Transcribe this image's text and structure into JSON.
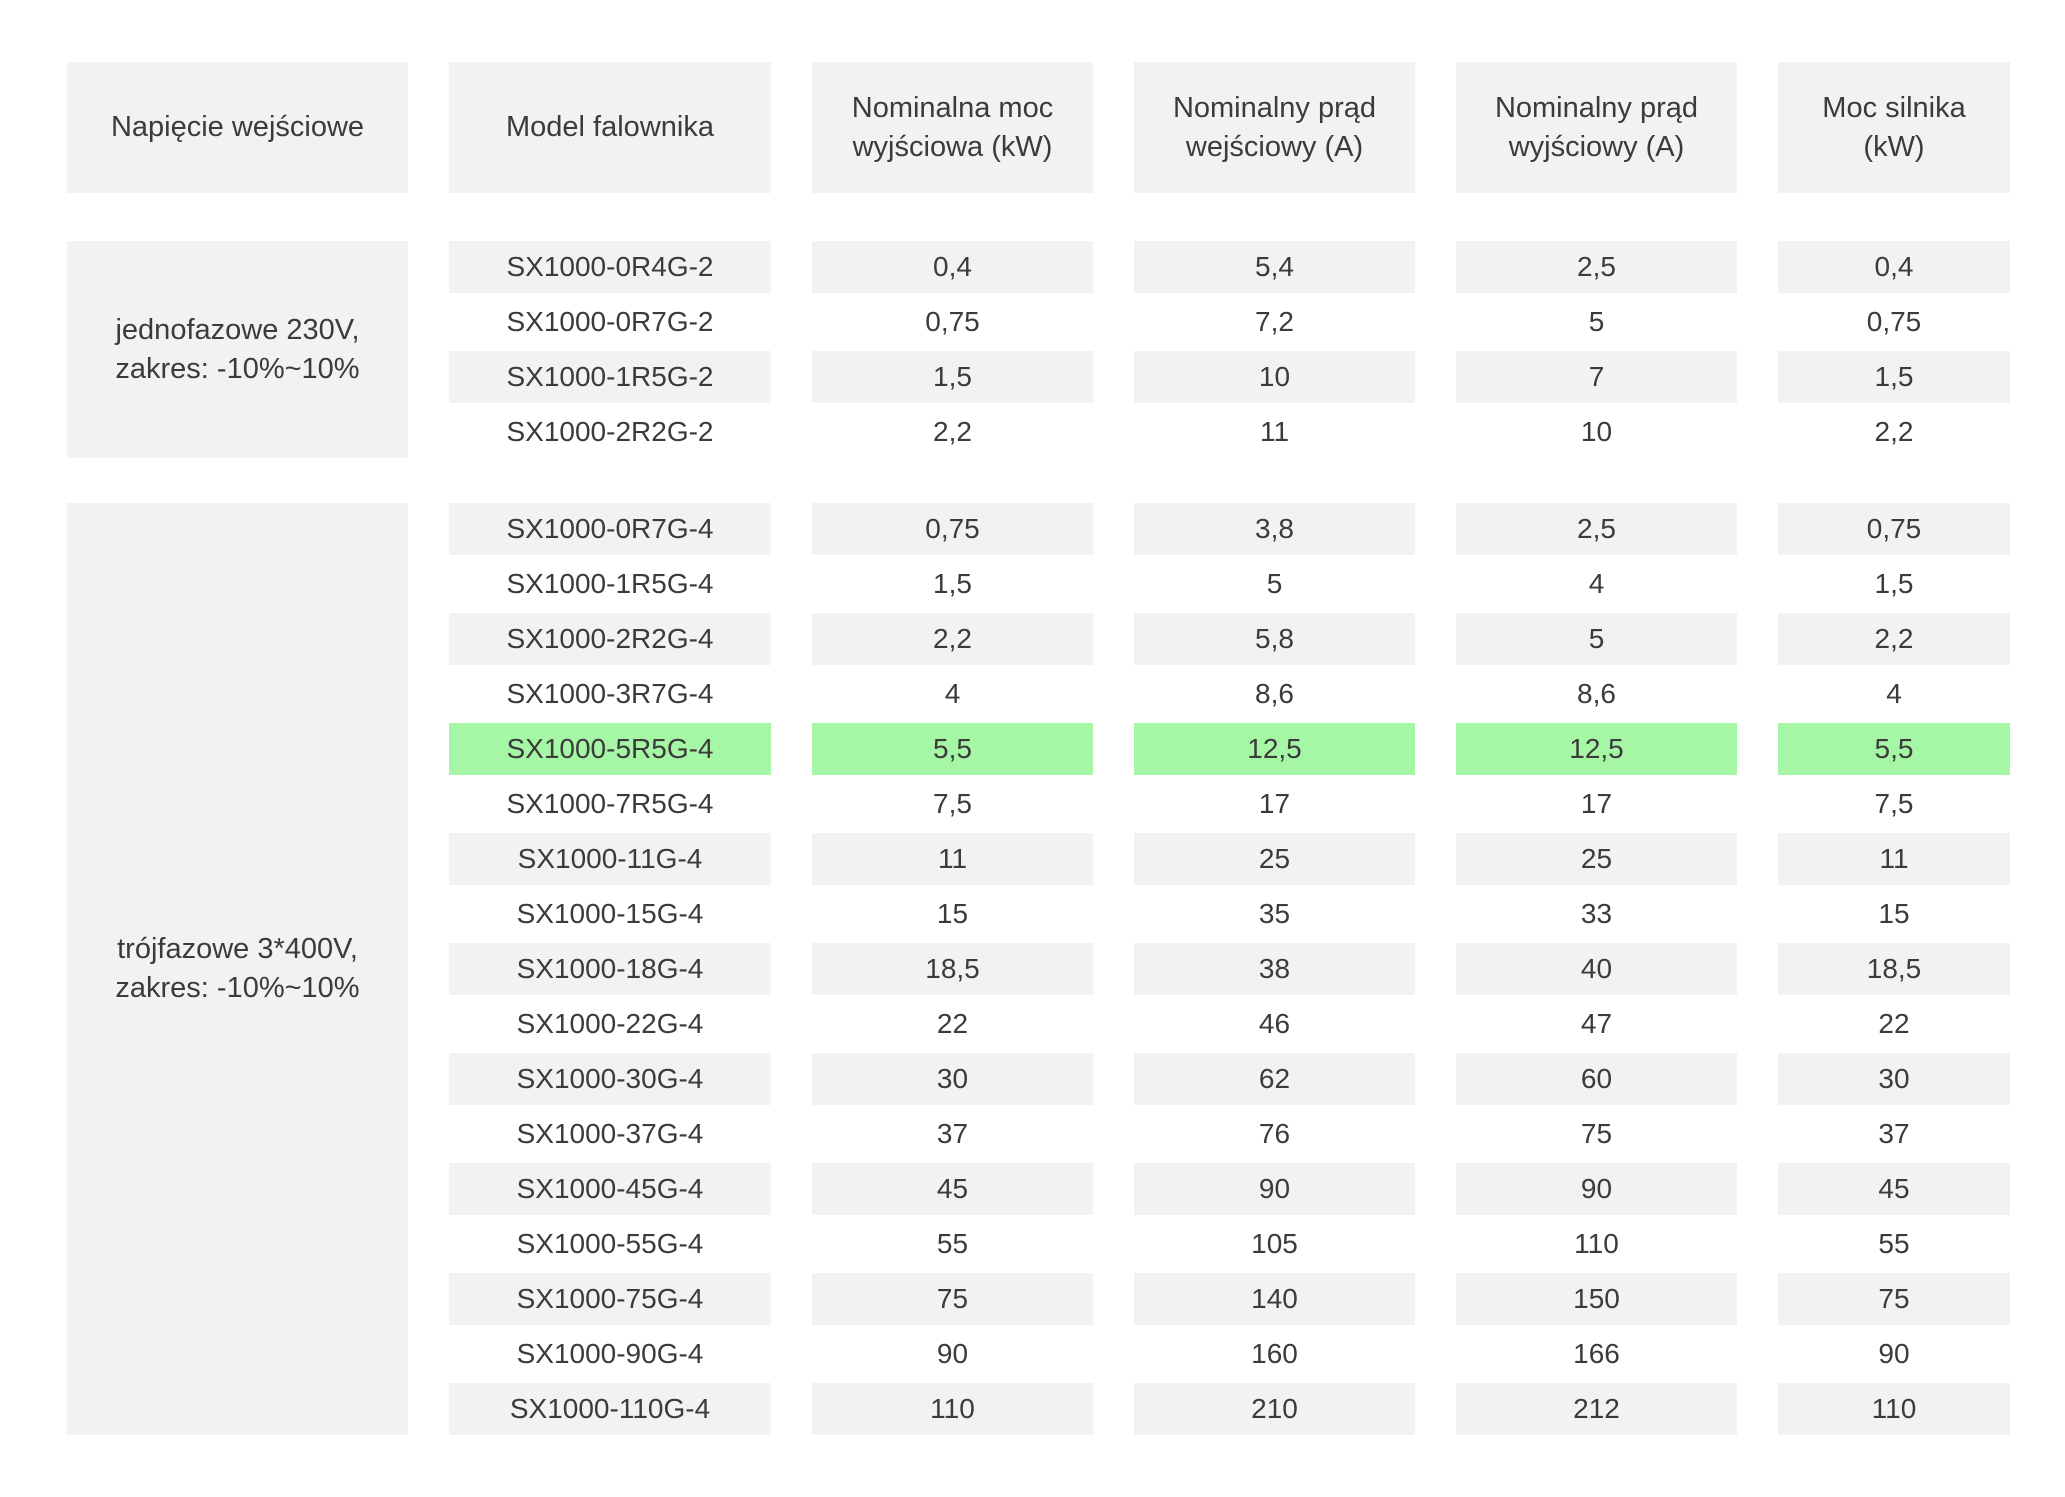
{
  "colors": {
    "cell_gray": "#f2f2f1",
    "highlight_green": "#a5f7a5",
    "text": "#3b3b3b",
    "background": "#ffffff"
  },
  "table": {
    "columns": [
      "Napięcie wejściowe",
      "Model falownika",
      "Nominalna moc wyjściowa (kW)",
      "Nominalny prąd wejściowy (A)",
      "Nominalny prąd wyjściowy (A)",
      "Moc silnika (kW)"
    ],
    "groups": [
      {
        "voltage_label_line1": "jednofazowe 230V,",
        "voltage_label_line2": "zakres: -10%~10%",
        "rows": [
          {
            "model": "SX1000-0R4G-2",
            "output_power_kw": "0,4",
            "input_current_a": "5,4",
            "output_current_a": "2,5",
            "motor_power_kw": "0,4",
            "highlight": false
          },
          {
            "model": "SX1000-0R7G-2",
            "output_power_kw": "0,75",
            "input_current_a": "7,2",
            "output_current_a": "5",
            "motor_power_kw": "0,75",
            "highlight": false
          },
          {
            "model": "SX1000-1R5G-2",
            "output_power_kw": "1,5",
            "input_current_a": "10",
            "output_current_a": "7",
            "motor_power_kw": "1,5",
            "highlight": false
          },
          {
            "model": "SX1000-2R2G-2",
            "output_power_kw": "2,2",
            "input_current_a": "11",
            "output_current_a": "10",
            "motor_power_kw": "2,2",
            "highlight": false
          }
        ]
      },
      {
        "voltage_label_line1": "trójfazowe 3*400V,",
        "voltage_label_line2": "zakres: -10%~10%",
        "rows": [
          {
            "model": "SX1000-0R7G-4",
            "output_power_kw": "0,75",
            "input_current_a": "3,8",
            "output_current_a": "2,5",
            "motor_power_kw": "0,75",
            "highlight": false
          },
          {
            "model": "SX1000-1R5G-4",
            "output_power_kw": "1,5",
            "input_current_a": "5",
            "output_current_a": "4",
            "motor_power_kw": "1,5",
            "highlight": false
          },
          {
            "model": "SX1000-2R2G-4",
            "output_power_kw": "2,2",
            "input_current_a": "5,8",
            "output_current_a": "5",
            "motor_power_kw": "2,2",
            "highlight": false
          },
          {
            "model": "SX1000-3R7G-4",
            "output_power_kw": "4",
            "input_current_a": "8,6",
            "output_current_a": "8,6",
            "motor_power_kw": "4",
            "highlight": false
          },
          {
            "model": "SX1000-5R5G-4",
            "output_power_kw": "5,5",
            "input_current_a": "12,5",
            "output_current_a": "12,5",
            "motor_power_kw": "5,5",
            "highlight": true
          },
          {
            "model": "SX1000-7R5G-4",
            "output_power_kw": "7,5",
            "input_current_a": "17",
            "output_current_a": "17",
            "motor_power_kw": "7,5",
            "highlight": false
          },
          {
            "model": "SX1000-11G-4",
            "output_power_kw": "11",
            "input_current_a": "25",
            "output_current_a": "25",
            "motor_power_kw": "11",
            "highlight": false
          },
          {
            "model": "SX1000-15G-4",
            "output_power_kw": "15",
            "input_current_a": "35",
            "output_current_a": "33",
            "motor_power_kw": "15",
            "highlight": false
          },
          {
            "model": "SX1000-18G-4",
            "output_power_kw": "18,5",
            "input_current_a": "38",
            "output_current_a": "40",
            "motor_power_kw": "18,5",
            "highlight": false
          },
          {
            "model": "SX1000-22G-4",
            "output_power_kw": "22",
            "input_current_a": "46",
            "output_current_a": "47",
            "motor_power_kw": "22",
            "highlight": false
          },
          {
            "model": "SX1000-30G-4",
            "output_power_kw": "30",
            "input_current_a": "62",
            "output_current_a": "60",
            "motor_power_kw": "30",
            "highlight": false
          },
          {
            "model": "SX1000-37G-4",
            "output_power_kw": "37",
            "input_current_a": "76",
            "output_current_a": "75",
            "motor_power_kw": "37",
            "highlight": false
          },
          {
            "model": "SX1000-45G-4",
            "output_power_kw": "45",
            "input_current_a": "90",
            "output_current_a": "90",
            "motor_power_kw": "45",
            "highlight": false
          },
          {
            "model": "SX1000-55G-4",
            "output_power_kw": "55",
            "input_current_a": "105",
            "output_current_a": "110",
            "motor_power_kw": "55",
            "highlight": false
          },
          {
            "model": "SX1000-75G-4",
            "output_power_kw": "75",
            "input_current_a": "140",
            "output_current_a": "150",
            "motor_power_kw": "75",
            "highlight": false
          },
          {
            "model": "SX1000-90G-4",
            "output_power_kw": "90",
            "input_current_a": "160",
            "output_current_a": "166",
            "motor_power_kw": "90",
            "highlight": false
          },
          {
            "model": "SX1000-110G-4",
            "output_power_kw": "110",
            "input_current_a": "210",
            "output_current_a": "212",
            "motor_power_kw": "110",
            "highlight": false
          }
        ]
      }
    ]
  }
}
